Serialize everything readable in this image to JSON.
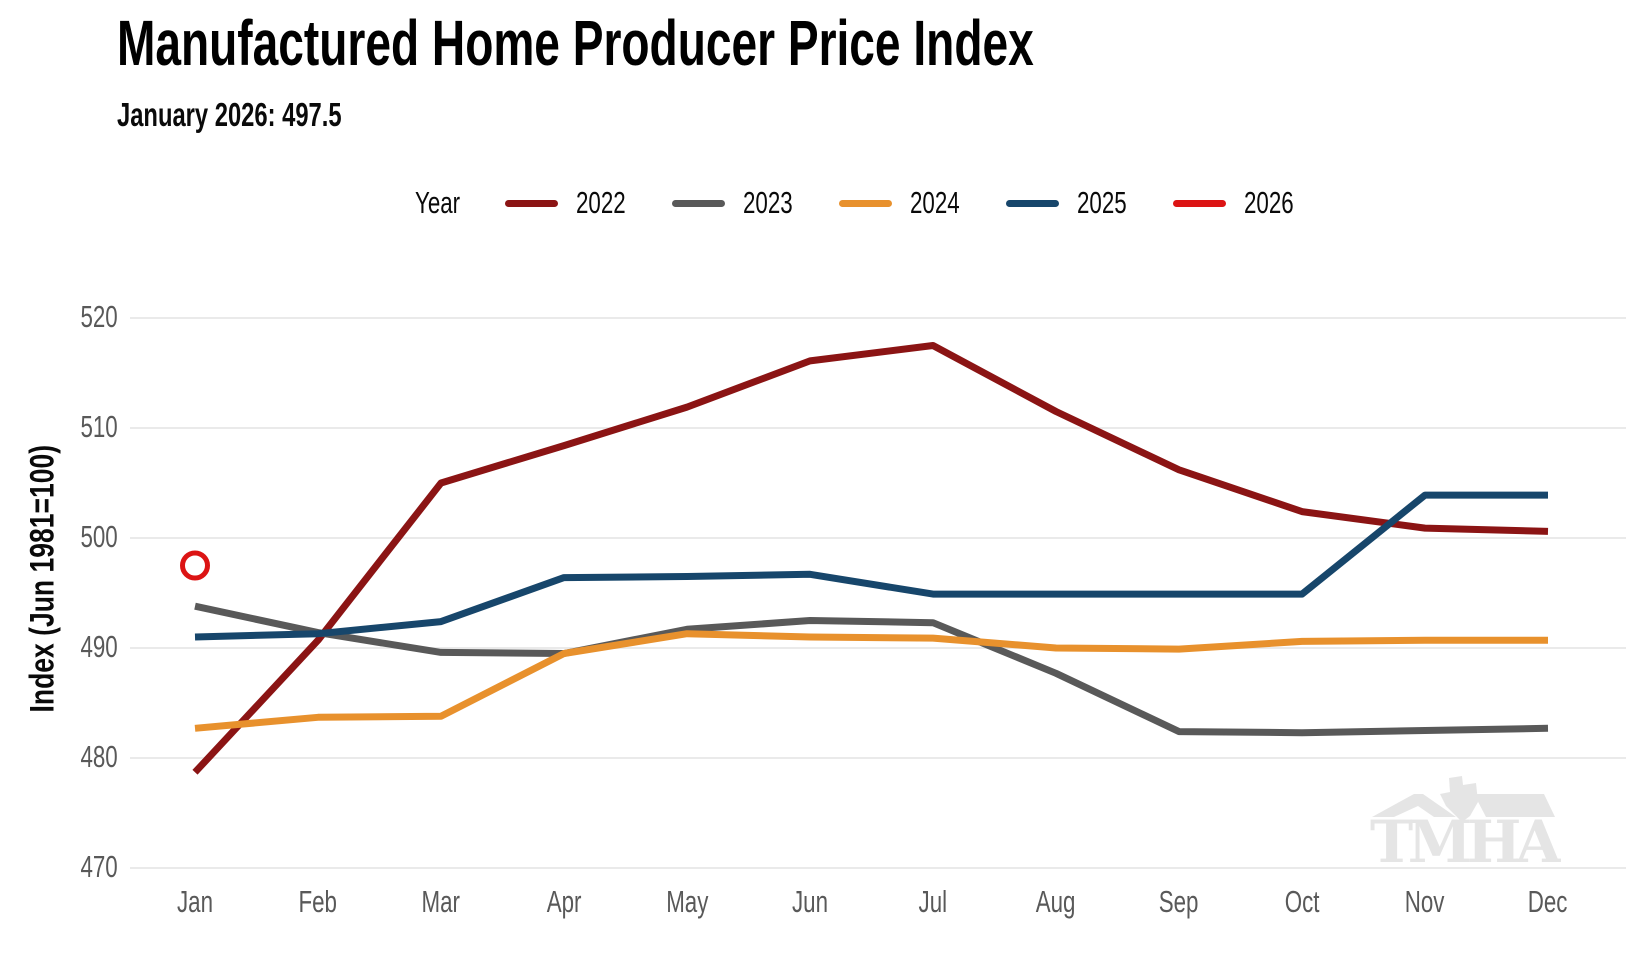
{
  "header": {
    "title": "Manufactured Home Producer Price Index",
    "subtitle": "January 2026: 497.5"
  },
  "legend": {
    "label": "Year",
    "items": [
      {
        "label": "2022",
        "color": "#8B1414"
      },
      {
        "label": "2023",
        "color": "#595959"
      },
      {
        "label": "2024",
        "color": "#E8912D"
      },
      {
        "label": "2025",
        "color": "#17466B"
      },
      {
        "label": "2026",
        "color": "#DC1414"
      }
    ]
  },
  "axes": {
    "y_title": "Index (Jun 1981=100)",
    "y_ticks": [
      520,
      510,
      500,
      490,
      480,
      470
    ],
    "x_ticks": [
      "Jan",
      "Feb",
      "Mar",
      "Apr",
      "May",
      "Jun",
      "Jul",
      "Aug",
      "Sep",
      "Oct",
      "Nov",
      "Dec"
    ]
  },
  "watermark": {
    "text": "TMHA"
  },
  "colors": {
    "grid": "#EAEAEA",
    "tick_text": "#595959",
    "watermark": "#E5E5E5"
  },
  "chart_data": {
    "type": "line",
    "title": "Manufactured Home Producer Price Index",
    "subtitle": "January 2026: 497.5",
    "xlabel": "",
    "ylabel": "Index (Jun 1981=100)",
    "ylim": [
      465,
      525
    ],
    "grid": "horizontal",
    "legend_position": "top",
    "legend_title": "Year",
    "categories": [
      "Jan",
      "Feb",
      "Mar",
      "Apr",
      "May",
      "Jun",
      "Jul",
      "Aug",
      "Sep",
      "Oct",
      "Nov",
      "Dec"
    ],
    "series": [
      {
        "name": "2022",
        "color": "#8B1414",
        "marker": "none",
        "values": [
          478.7,
          490.7,
          505.0,
          508.4,
          511.9,
          516.1,
          517.5,
          511.5,
          506.2,
          502.4,
          500.9,
          500.6
        ]
      },
      {
        "name": "2023",
        "color": "#595959",
        "marker": "none",
        "values": [
          493.8,
          491.4,
          489.6,
          489.5,
          491.7,
          492.5,
          492.3,
          487.7,
          482.4,
          482.3,
          482.5,
          482.7
        ]
      },
      {
        "name": "2024",
        "color": "#E8912D",
        "marker": "none",
        "values": [
          482.7,
          483.7,
          483.8,
          489.5,
          491.3,
          491.0,
          490.9,
          490.0,
          489.9,
          490.6,
          490.7,
          490.7
        ]
      },
      {
        "name": "2025",
        "color": "#17466B",
        "marker": "none",
        "values": [
          491.0,
          491.3,
          492.4,
          496.4,
          496.5,
          496.7,
          494.9,
          494.9,
          494.9,
          494.9,
          503.9,
          503.9
        ]
      },
      {
        "name": "2026",
        "color": "#DC1414",
        "marker": "open-circle",
        "values": [
          497.5,
          null,
          null,
          null,
          null,
          null,
          null,
          null,
          null,
          null,
          null,
          null
        ]
      }
    ]
  }
}
